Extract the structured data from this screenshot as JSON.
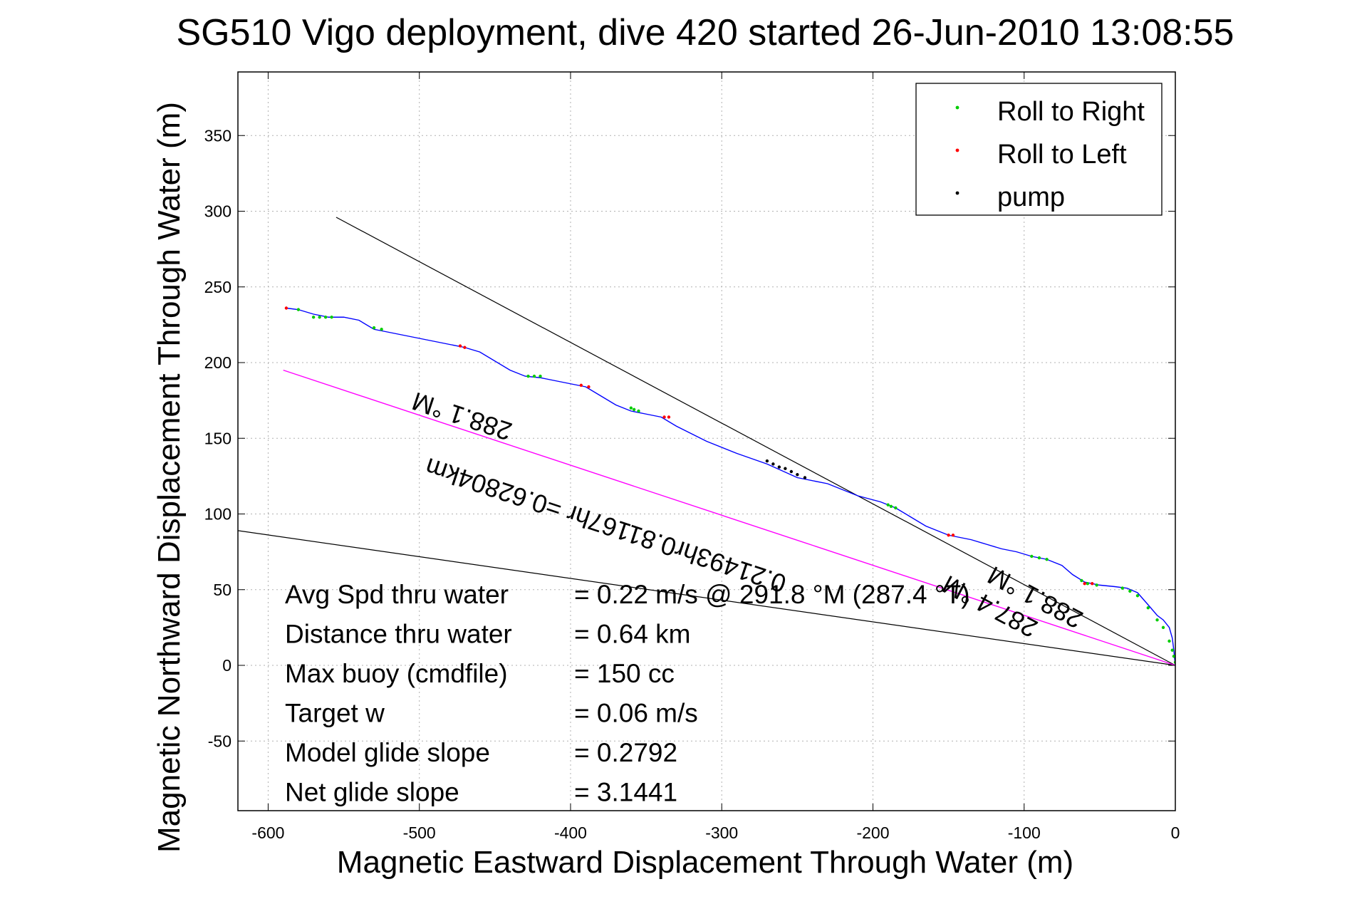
{
  "chart_data": {
    "type": "line",
    "title": "SG510 Vigo deployment, dive 420 started 26-Jun-2010 13:08:55",
    "xlabel": "Magnetic Eastward Displacement Through Water (m)",
    "ylabel": "Magnetic Northward Displacement Through Water (m)",
    "xlim": [
      -620,
      0
    ],
    "ylim": [
      -96,
      392
    ],
    "xticks": [
      -600,
      -500,
      -400,
      -300,
      -200,
      -100,
      0
    ],
    "yticks": [
      -50,
      0,
      50,
      100,
      150,
      200,
      250,
      300,
      350
    ],
    "xtick_labels": [
      "-600",
      "-500",
      "-400",
      "-300",
      "-200",
      "-100",
      "0"
    ],
    "ytick_labels": [
      "-50",
      "0",
      "50",
      "100",
      "150",
      "200",
      "250",
      "300",
      "350"
    ],
    "grid": true,
    "legend_position": "top-right",
    "legend": [
      {
        "label": "Roll to Right",
        "color": "#00cc00"
      },
      {
        "label": "Roll to Left",
        "color": "#ff0000"
      },
      {
        "label": "pump",
        "color": "#000000"
      }
    ],
    "series": [
      {
        "color": "#0000ff",
        "x": [
          0,
          -1,
          -2,
          -4,
          -8,
          -12,
          -18,
          -25,
          -32,
          -40,
          -50,
          -60,
          -68,
          -75,
          -85,
          -95,
          -105,
          -115,
          -125,
          -135,
          -150,
          -165,
          -175,
          -185,
          -195,
          -210,
          -230,
          -250,
          -270,
          -290,
          -310,
          -330,
          -340,
          -350,
          -360,
          -370,
          -380,
          -390,
          -400,
          -410,
          -420,
          -430,
          -440,
          -460,
          -470,
          -480,
          -500,
          -520,
          -530,
          -540,
          -550,
          -560,
          -570,
          -580,
          -588
        ],
        "y": [
          0,
          10,
          18,
          25,
          30,
          33,
          40,
          48,
          51,
          52,
          53,
          55,
          60,
          66,
          70,
          72,
          75,
          77,
          80,
          83,
          86,
          92,
          98,
          104,
          108,
          112,
          120,
          124,
          133,
          140,
          148,
          158,
          164,
          166,
          168,
          172,
          178,
          184,
          186,
          188,
          190,
          191,
          195,
          207,
          210,
          212,
          216,
          220,
          222,
          228,
          230,
          230,
          232,
          235,
          236
        ]
      },
      {
        "color": "#ff00ff",
        "x": [
          0,
          -590
        ],
        "y": [
          0,
          195
        ]
      }
    ],
    "reference_lines": [
      {
        "x": [
          0,
          -555
        ],
        "y": [
          0,
          296
        ]
      },
      {
        "x": [
          0,
          -620
        ],
        "y": [
          0,
          89
        ]
      }
    ],
    "markers": {
      "roll_right": {
        "color": "#00cc00",
        "x": [
          0,
          -1,
          -2,
          -4,
          -8,
          -12,
          -18,
          -25,
          -30,
          -35,
          -52,
          -58,
          -62,
          -85,
          -90,
          -95,
          -185,
          -188,
          -190,
          -355,
          -358,
          -360,
          -420,
          -424,
          -428,
          -525,
          -530,
          -558,
          -562,
          -566,
          -570,
          -580
        ],
        "y": [
          2,
          6,
          10,
          16,
          25,
          30,
          38,
          46,
          49,
          51,
          53,
          54,
          56,
          70,
          71,
          72,
          104,
          105,
          106,
          168,
          169,
          170,
          191,
          191,
          191,
          222,
          223,
          230,
          230,
          230,
          230,
          235
        ]
      },
      "roll_left": {
        "color": "#ff0000",
        "x": [
          -55,
          -60,
          -147,
          -150,
          -335,
          -338,
          -388,
          -393,
          -470,
          -473,
          -588
        ],
        "y": [
          54,
          54,
          86,
          86,
          164,
          164,
          184,
          185,
          210,
          211,
          236
        ]
      },
      "pump": {
        "color": "#000000",
        "x": [
          -245,
          -250,
          -254,
          -258,
          -262,
          -266,
          -270
        ],
        "y": [
          124,
          126,
          128,
          130,
          131,
          133,
          135
        ]
      }
    },
    "annotations": [
      {
        "text": "288.1 °M",
        "x": -470,
        "y": 170,
        "angle_deg": 198.3
      },
      {
        "text": "0.21493hr0.81167hr =0.62804km",
        "x": -375,
        "y": 98,
        "angle_deg": 198.3
      },
      {
        "text": "288.1 °M",
        "x": -90,
        "y": 50,
        "angle_deg": 207.9
      },
      {
        "text": "287.4 °M",
        "x": -120,
        "y": 44,
        "angle_deg": 207.9
      }
    ],
    "stats": [
      {
        "label": "Avg Spd thru water",
        "value": "=  0.22 m/s @ 291.8 °M (287.4 °T)"
      },
      {
        "label": "Distance thru water",
        "value": "=  0.64 km"
      },
      {
        "label": "Max buoy (cmdfile)",
        "value": "= 150 cc"
      },
      {
        "label": "Target w",
        "value": "= 0.06 m/s"
      },
      {
        "label": "Model glide slope",
        "value": "= 0.2792"
      },
      {
        "label": "Net glide slope",
        "value": "= 3.1441"
      }
    ]
  }
}
